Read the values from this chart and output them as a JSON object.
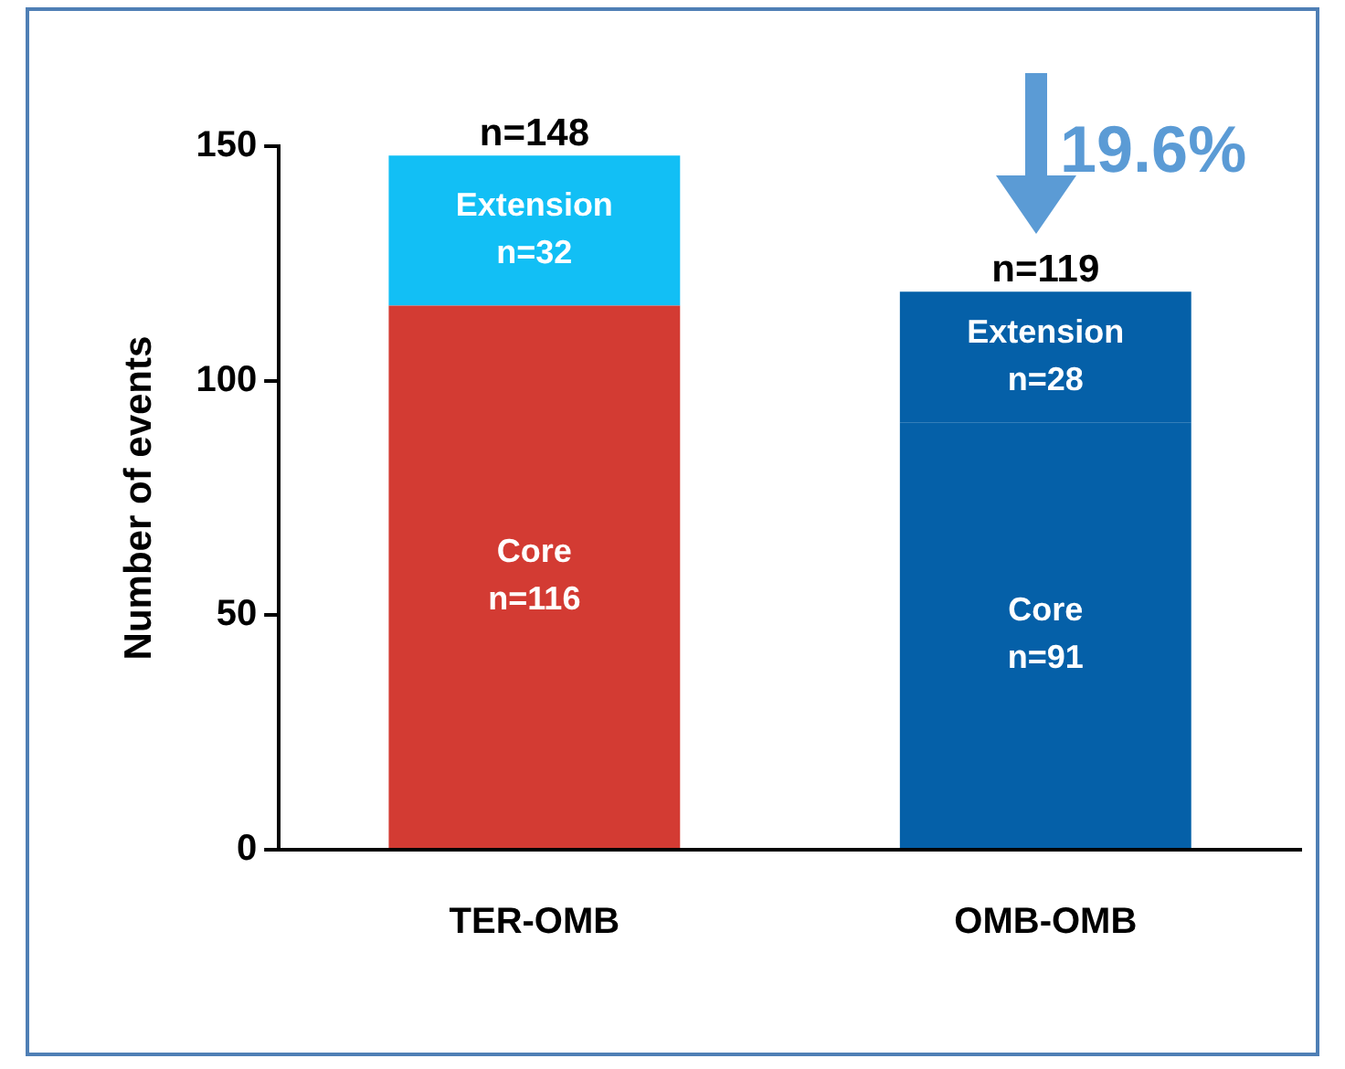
{
  "chart_data": {
    "type": "bar",
    "stacked": true,
    "ylabel": "Number of events",
    "categories": [
      "TER-OMB",
      "OMB-OMB"
    ],
    "series": [
      {
        "name": "Core",
        "values": [
          116,
          91
        ],
        "colors": [
          "#d33b33",
          "#0560a8"
        ],
        "value_labels": [
          "n=116",
          "n=91"
        ]
      },
      {
        "name": "Extension",
        "values": [
          32,
          28
        ],
        "colors": [
          "#12bff5",
          "#0560a8"
        ],
        "value_labels": [
          "n=32",
          "n=28"
        ]
      }
    ],
    "totals": [
      "n=148",
      "n=119"
    ],
    "ylim": [
      0,
      150
    ],
    "yticks": [
      0,
      50,
      100,
      150
    ],
    "grid": false,
    "legend": false,
    "annotations": [
      "19.6%"
    ]
  }
}
